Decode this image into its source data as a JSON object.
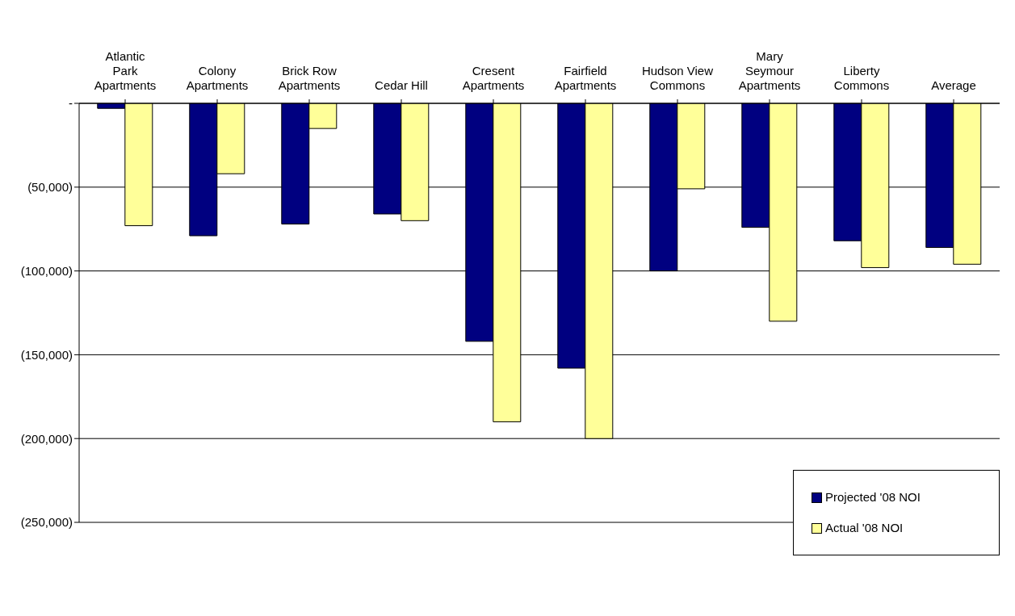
{
  "chart_data": {
    "type": "bar",
    "categories": [
      "Atlantic Park Apartments",
      "Colony Apartments",
      "Brick Row Apartments",
      "Cedar Hill",
      "Cresent Apartments",
      "Fairfield Apartments",
      "Hudson View Commons",
      "Mary Seymour Apartments",
      "Liberty Commons",
      "Average"
    ],
    "series": [
      {
        "name": "Projected '08 NOI",
        "color": "#000080",
        "values": [
          -3000,
          -79000,
          -72000,
          -66000,
          -142000,
          -158000,
          -100000,
          -74000,
          -82000,
          -86000
        ]
      },
      {
        "name": "Actual '08 NOI",
        "color": "#ffff99",
        "values": [
          -73000,
          -42000,
          -15000,
          -70000,
          -190000,
          -200000,
          -51000,
          -130000,
          -98000,
          -96000
        ]
      }
    ],
    "ylim": [
      -250000,
      0
    ],
    "yticks": [
      {
        "value": 0,
        "label": "-"
      },
      {
        "value": -50000,
        "label": "(50,000)"
      },
      {
        "value": -100000,
        "label": "(100,000)"
      },
      {
        "value": -150000,
        "label": "(150,000)"
      },
      {
        "value": -200000,
        "label": "(200,000)"
      },
      {
        "value": -250000,
        "label": "(250,000)"
      }
    ],
    "grid": "y",
    "legend": "bottom right"
  }
}
